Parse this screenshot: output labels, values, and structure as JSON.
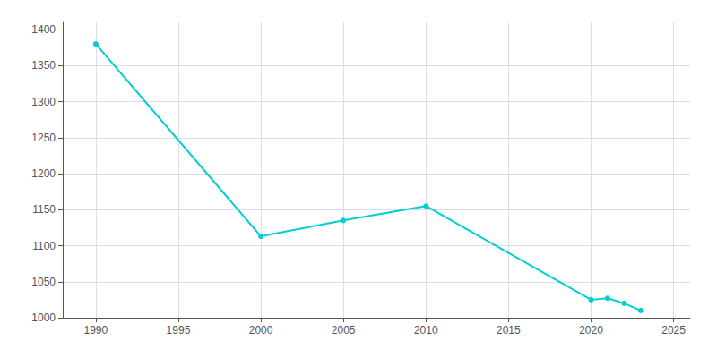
{
  "chart_data": {
    "type": "line",
    "x": [
      1990,
      2000,
      2005,
      2010,
      2020,
      2021,
      2022,
      2023
    ],
    "values": [
      1380,
      1113,
      1135,
      1155,
      1025,
      1027,
      1020,
      1010
    ],
    "color": "#00CED1",
    "marker": "circle",
    "xlim": [
      1988,
      2026
    ],
    "ylim": [
      1000,
      1410
    ],
    "xticks": [
      1990,
      1995,
      2000,
      2005,
      2010,
      2015,
      2020,
      2025
    ],
    "yticks": [
      1000,
      1050,
      1100,
      1150,
      1200,
      1250,
      1300,
      1350,
      1400
    ],
    "grid": true
  }
}
